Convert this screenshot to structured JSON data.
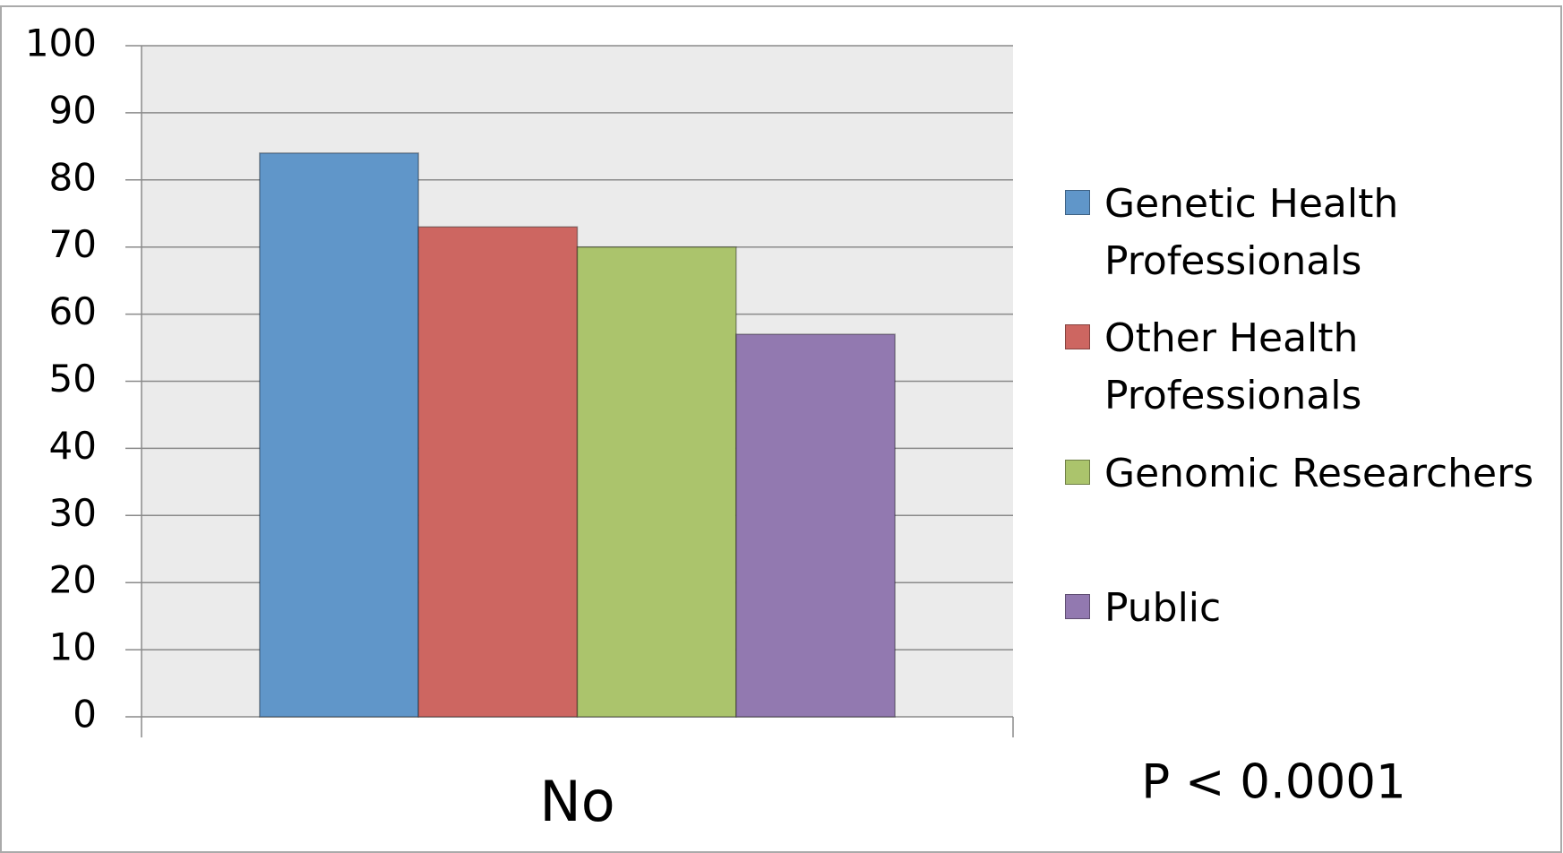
{
  "chart_data": {
    "type": "bar",
    "categories": [
      "No"
    ],
    "series": [
      {
        "name": "Genetic Health Professionals",
        "color": "#6096c9",
        "values": [
          84
        ]
      },
      {
        "name": "Other Health Professionals",
        "color": "#cd6661",
        "values": [
          73
        ]
      },
      {
        "name": "Genomic Researchers",
        "color": "#abc46c",
        "values": [
          70
        ]
      },
      {
        "name": "Public",
        "color": "#9279b0",
        "values": [
          57
        ]
      }
    ],
    "ylim": [
      0,
      100
    ],
    "yticks": [
      0,
      10,
      20,
      30,
      40,
      50,
      60,
      70,
      80,
      90,
      100
    ],
    "grid": true,
    "legend": "right",
    "annotations": [
      "P < 0.0001"
    ]
  }
}
